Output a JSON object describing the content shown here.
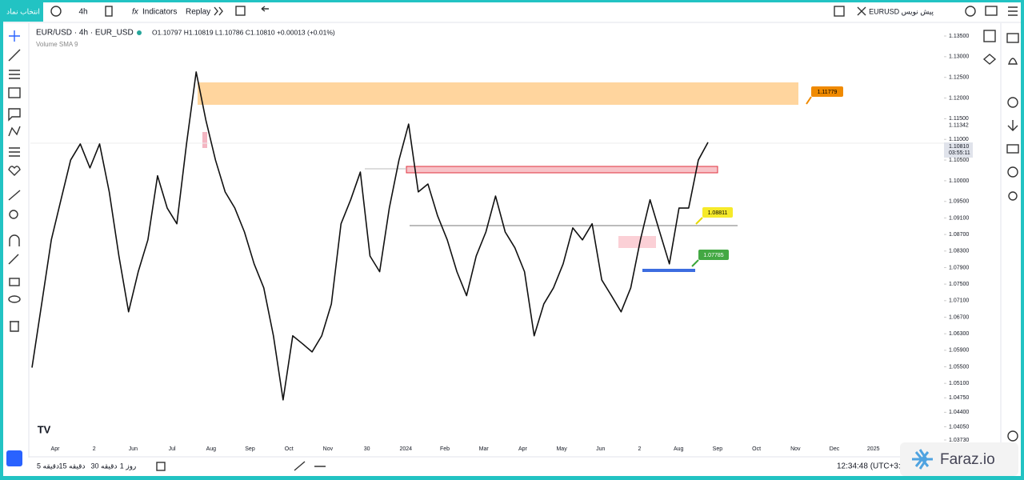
{
  "toolbar": {
    "symbol_search": "انتخاب نماد",
    "interval": "4h",
    "indicators": "Indicators",
    "replay": "Replay",
    "draft": "EURUSD پیش نویس"
  },
  "chart": {
    "legend_title": "EUR/USD · 4h · EUR_USD",
    "ohlc": "O1.10797 H1.10819 L1.10786 C1.10810 +0.00013 (+0.01%)",
    "indicator": "Volume SMA 9",
    "yticks": [
      {
        "value": 1.135,
        "label": "1.13500"
      },
      {
        "value": 1.13,
        "label": "1.13000"
      },
      {
        "value": 1.125,
        "label": "1.12500"
      },
      {
        "value": 1.12,
        "label": "1.12000"
      },
      {
        "value": 1.115,
        "label": "1.11500"
      },
      {
        "value": 1.11,
        "label": "1.11000"
      },
      {
        "value": 1.105,
        "label": "1.10500"
      },
      {
        "value": 1.1,
        "label": "1.10000"
      },
      {
        "value": 1.095,
        "label": "1.09500"
      },
      {
        "value": 1.091,
        "label": "1.09100"
      },
      {
        "value": 1.087,
        "label": "1.08700"
      },
      {
        "value": 1.083,
        "label": "1.08300"
      },
      {
        "value": 1.079,
        "label": "1.07900"
      },
      {
        "value": 1.075,
        "label": "1.07500"
      },
      {
        "value": 1.071,
        "label": "1.07100"
      },
      {
        "value": 1.067,
        "label": "1.06700"
      },
      {
        "value": 1.063,
        "label": "1.06300"
      },
      {
        "value": 1.059,
        "label": "1.05900"
      },
      {
        "value": 1.055,
        "label": "1.05500"
      },
      {
        "value": 1.051,
        "label": "1.05100"
      },
      {
        "value": 1.0475,
        "label": "1.04750"
      },
      {
        "value": 1.044,
        "label": "1.04400"
      },
      {
        "value": 1.0405,
        "label": "1.04050"
      },
      {
        "value": 1.0373,
        "label": "1.03730"
      }
    ],
    "current_price": {
      "value": 1.1081,
      "label": "1.10810"
    },
    "countdown": "03:55:11",
    "line_level": 1.11342,
    "xticks": [
      "Apr",
      "2",
      "Jun",
      "Jul",
      "Aug",
      "Sep",
      "Oct",
      "Nov",
      "30",
      "2024",
      "Feb",
      "Mar",
      "Apr",
      "May",
      "Jun",
      "2",
      "Aug",
      "Sep",
      "Oct",
      "Nov",
      "Dec",
      "2025"
    ],
    "price_path": [
      1.0548,
      1.0702,
      1.0857,
      1.0954,
      1.105,
      1.1089,
      1.1031,
      1.1089,
      1.0973,
      1.0818,
      1.0683,
      1.078,
      1.0857,
      1.1012,
      1.0934,
      1.0896,
      1.1089,
      1.1263,
      1.1147,
      1.105,
      1.0973,
      1.0934,
      1.0876,
      1.0799,
      1.0741,
      1.0625,
      1.047,
      1.0625,
      1.0606,
      1.0586,
      1.0625,
      1.0702,
      1.0896,
      1.0954,
      1.1021,
      1.0818,
      1.078,
      1.0934,
      1.105,
      1.1137,
      1.0973,
      1.0992,
      1.0915,
      1.0857,
      1.078,
      1.0722,
      1.0818,
      1.0876,
      1.0963,
      1.0876,
      1.0838,
      1.078,
      1.0625,
      1.0702,
      1.0741,
      1.0799,
      1.0886,
      1.0857,
      1.0896,
      1.076,
      1.0722,
      1.0683,
      1.0741,
      1.0857,
      1.0954,
      1.0876,
      1.0799,
      1.0934,
      1.0934,
      1.105,
      1.1093
    ],
    "zone_labels": [
      "1.11779",
      "1.08811",
      "1.07785"
    ]
  },
  "bottom_bar": {
    "ranges": [
      "5 دقیقه",
      "15 دقیقه",
      "30 دقیقه",
      "1 روز"
    ],
    "clock": "12:34:48 (UTC+3:3"
  },
  "watermark": "Faraz.io"
}
